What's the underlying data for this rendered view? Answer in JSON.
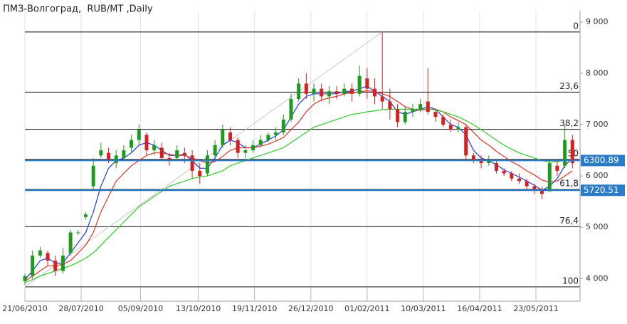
{
  "chart_data": {
    "type": "candlestick",
    "title": "ПМЗ-Волгоград,  RUB/MT ,Daily",
    "x": [
      "2010-06-21",
      "2010-06-26",
      "2010-07-01",
      "2010-07-06",
      "2010-07-11",
      "2010-07-16",
      "2010-07-21",
      "2010-07-26",
      "2010-07-31",
      "2010-08-05",
      "2010-08-10",
      "2010-08-15",
      "2010-08-20",
      "2010-08-25",
      "2010-08-30",
      "2010-09-04",
      "2010-09-09",
      "2010-09-14",
      "2010-09-19",
      "2010-09-24",
      "2010-09-29",
      "2010-10-04",
      "2010-10-09",
      "2010-10-14",
      "2010-10-19",
      "2010-10-24",
      "2010-10-29",
      "2010-11-03",
      "2010-11-08",
      "2010-11-13",
      "2010-11-18",
      "2010-11-23",
      "2010-11-28",
      "2010-12-03",
      "2010-12-08",
      "2010-12-13",
      "2010-12-18",
      "2010-12-23",
      "2010-12-28",
      "2011-01-02",
      "2011-01-07",
      "2011-01-12",
      "2011-01-17",
      "2011-01-22",
      "2011-01-27",
      "2011-02-01",
      "2011-02-06",
      "2011-02-11",
      "2011-02-16",
      "2011-02-21",
      "2011-02-26",
      "2011-03-03",
      "2011-03-08",
      "2011-03-13",
      "2011-03-18",
      "2011-03-23",
      "2011-03-28",
      "2011-04-02",
      "2011-04-07",
      "2011-04-12",
      "2011-04-17",
      "2011-04-22",
      "2011-04-27",
      "2011-05-02",
      "2011-05-07",
      "2011-05-12",
      "2011-05-17",
      "2011-05-22",
      "2011-05-27",
      "2011-06-01",
      "2011-06-06",
      "2011-06-11",
      "2011-06-16"
    ],
    "open": [
      3950,
      4050,
      4450,
      4500,
      4350,
      4150,
      4500,
      4900,
      5200,
      5800,
      6400,
      6450,
      6250,
      6350,
      6550,
      6700,
      6800,
      6500,
      6550,
      6350,
      6350,
      6450,
      6400,
      6100,
      6050,
      6400,
      6600,
      6850,
      6700,
      6450,
      6500,
      6600,
      6700,
      6800,
      6850,
      7100,
      7500,
      7800,
      7600,
      7700,
      7550,
      7650,
      7600,
      7700,
      7600,
      7900,
      7700,
      7550,
      7450,
      7300,
      7050,
      7250,
      7300,
      7450,
      7250,
      7150,
      7000,
      6900,
      6950,
      6400,
      6300,
      6250,
      6250,
      6100,
      6050,
      5950,
      5900,
      5800,
      5750,
      5700,
      6200,
      6200,
      6700
    ],
    "high": [
      4100,
      4550,
      4620,
      4550,
      4450,
      4600,
      4950,
      4950,
      5300,
      6350,
      6650,
      6550,
      6500,
      6600,
      6800,
      7000,
      6850,
      6700,
      6650,
      6450,
      6600,
      6550,
      6500,
      6250,
      6500,
      6700,
      7000,
      6950,
      6750,
      6600,
      6700,
      6800,
      6850,
      6950,
      7200,
      7600,
      7900,
      8000,
      7800,
      7800,
      7750,
      7750,
      7800,
      7800,
      8150,
      8100,
      7900,
      8800,
      7700,
      7400,
      7350,
      7400,
      7500,
      8100,
      7300,
      7200,
      7100,
      7050,
      7000,
      6450,
      6400,
      6400,
      6300,
      6150,
      6100,
      6050,
      5950,
      5850,
      5800,
      6300,
      6300,
      7000,
      6800
    ],
    "low": [
      3880,
      4000,
      4400,
      4250,
      4050,
      4100,
      4450,
      4850,
      5150,
      5750,
      6350,
      6250,
      6150,
      6300,
      6450,
      6600,
      6400,
      6400,
      6300,
      6200,
      6300,
      6250,
      5950,
      5850,
      6000,
      6350,
      6550,
      6600,
      6350,
      6350,
      6450,
      6550,
      6650,
      6700,
      6800,
      7050,
      7450,
      7500,
      7450,
      7450,
      7400,
      7500,
      7550,
      7450,
      7550,
      7500,
      7400,
      7300,
      7100,
      6950,
      7000,
      7150,
      7250,
      7200,
      7050,
      6950,
      6850,
      6850,
      6300,
      6250,
      6150,
      6200,
      6050,
      6000,
      5900,
      5850,
      5750,
      5650,
      5550,
      5700,
      6000,
      6150,
      6150
    ],
    "close": [
      4050,
      4450,
      4550,
      4350,
      4150,
      4450,
      4900,
      4900,
      5250,
      6200,
      6500,
      6300,
      6400,
      6500,
      6700,
      6900,
      6500,
      6600,
      6350,
      6300,
      6500,
      6400,
      6100,
      6000,
      6400,
      6600,
      6900,
      6700,
      6450,
      6500,
      6600,
      6700,
      6800,
      6850,
      7100,
      7500,
      7800,
      7600,
      7700,
      7550,
      7650,
      7600,
      7700,
      7600,
      7950,
      7700,
      7550,
      7450,
      7300,
      7050,
      7250,
      7300,
      7400,
      7250,
      7150,
      7000,
      6900,
      6950,
      6400,
      6300,
      6250,
      6300,
      6100,
      6050,
      5950,
      5900,
      5800,
      5750,
      5650,
      6250,
      6100,
      6700,
      6250
    ],
    "up_color": "#1f9a1f",
    "down_color": "#d42222",
    "moving_averages": [
      {
        "color": "#1a3ee0",
        "values": [
          3980,
          4150,
          4350,
          4400,
          4300,
          4300,
          4500,
          4700,
          4900,
          5300,
          5800,
          6150,
          6300,
          6350,
          6450,
          6600,
          6650,
          6600,
          6500,
          6400,
          6400,
          6420,
          6300,
          6150,
          6150,
          6350,
          6600,
          6700,
          6650,
          6550,
          6550,
          6620,
          6700,
          6780,
          6900,
          7150,
          7400,
          7550,
          7600,
          7600,
          7600,
          7600,
          7650,
          7650,
          7700,
          7750,
          7650,
          7550,
          7450,
          7250,
          7200,
          7250,
          7300,
          7350,
          7300,
          7150,
          7000,
          6950,
          6800,
          6500,
          6350,
          6300,
          6220,
          6120,
          6050,
          5980,
          5900,
          5820,
          5720,
          5800,
          5950,
          6200,
          6350
        ]
      },
      {
        "color": "#e0302a",
        "values": [
          3950,
          4050,
          4150,
          4250,
          4250,
          4280,
          4350,
          4500,
          4650,
          4900,
          5300,
          5600,
          5900,
          6050,
          6200,
          6300,
          6400,
          6450,
          6450,
          6420,
          6400,
          6400,
          6350,
          6300,
          6250,
          6280,
          6380,
          6500,
          6550,
          6550,
          6550,
          6580,
          6620,
          6680,
          6750,
          6900,
          7050,
          7250,
          7400,
          7480,
          7520,
          7550,
          7600,
          7620,
          7640,
          7660,
          7650,
          7600,
          7550,
          7450,
          7350,
          7300,
          7280,
          7300,
          7300,
          7250,
          7150,
          7080,
          7000,
          6850,
          6700,
          6600,
          6480,
          6380,
          6280,
          6200,
          6100,
          6020,
          5920,
          5880,
          5900,
          6000,
          6100
        ]
      },
      {
        "color": "#2ec82e",
        "values": [
          3920,
          3980,
          4050,
          4100,
          4150,
          4200,
          4250,
          4320,
          4400,
          4500,
          4650,
          4800,
          4950,
          5100,
          5250,
          5400,
          5500,
          5600,
          5700,
          5800,
          5850,
          5900,
          5950,
          5980,
          6000,
          6050,
          6100,
          6200,
          6250,
          6300,
          6350,
          6400,
          6450,
          6500,
          6550,
          6650,
          6750,
          6850,
          6950,
          7000,
          7050,
          7100,
          7150,
          7200,
          7220,
          7250,
          7270,
          7290,
          7300,
          7300,
          7300,
          7300,
          7300,
          7300,
          7290,
          7250,
          7200,
          7150,
          7080,
          7000,
          6900,
          6800,
          6700,
          6600,
          6520,
          6450,
          6400,
          6350,
          6300,
          6270,
          6280,
          6300,
          6310
        ]
      }
    ],
    "trendline": {
      "x": [
        "2010-06-21",
        "2011-02-11"
      ],
      "values": [
        3840,
        8806
      ],
      "color": "#c8c8c8"
    },
    "fib_levels": [
      {
        "label": "0",
        "value": 8806
      },
      {
        "label": "23,6",
        "value": 7634
      },
      {
        "label": "38,2",
        "value": 6909
      },
      {
        "label": "50",
        "value": 6323
      },
      {
        "label": "61,8",
        "value": 5737
      },
      {
        "label": "76,4",
        "value": 5012
      },
      {
        "label": "100",
        "value": 3840
      }
    ],
    "price_lines": [
      {
        "label": "6300.89",
        "value": 6300.89
      },
      {
        "label": "5720.51",
        "value": 5720.51
      }
    ],
    "price_line_color": "#2a7cc7",
    "ylim": [
      3560,
      9220
    ],
    "yticks": [
      {
        "value": 4000,
        "label": "4 000"
      },
      {
        "value": 5000,
        "label": "5 000"
      },
      {
        "value": 6000,
        "label": "6 000"
      },
      {
        "value": 7000,
        "label": "7 000"
      },
      {
        "value": 8000,
        "label": "8 000"
      },
      {
        "value": 9000,
        "label": "9 000"
      }
    ],
    "xlim": [
      "2010-06-21",
      "2011-06-21"
    ],
    "xticks": [
      {
        "value": "2010-06-21",
        "label": "21/06/2010"
      },
      {
        "value": "2010-07-28",
        "label": "28/07/2010"
      },
      {
        "value": "2010-09-05",
        "label": "05/09/2010"
      },
      {
        "value": "2010-10-13",
        "label": "13/10/2010"
      },
      {
        "value": "2010-11-19",
        "label": "19/11/2010"
      },
      {
        "value": "2010-12-26",
        "label": "26/12/2010"
      },
      {
        "value": "2011-02-01",
        "label": "01/02/2011"
      },
      {
        "value": "2011-03-10",
        "label": "10/03/2011"
      },
      {
        "value": "2011-04-16",
        "label": "16/04/2011"
      },
      {
        "value": "2011-05-23",
        "label": "23/05/2011"
      }
    ],
    "grid": true
  }
}
